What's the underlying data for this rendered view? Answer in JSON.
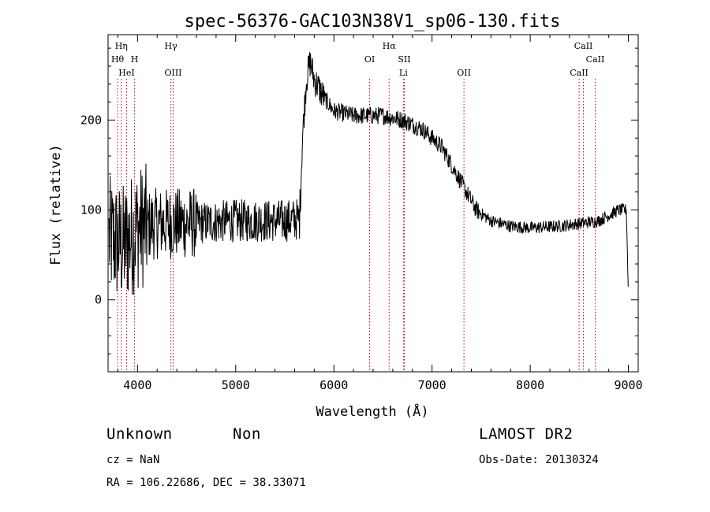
{
  "chart_data": {
    "type": "line",
    "title": "spec-56376-GAC103N38V1_sp06-130.fits",
    "xlabel": "Wavelength (Å)",
    "ylabel": "Flux (relative)",
    "xlim": [
      3700,
      9100
    ],
    "ylim": [
      -80,
      295
    ],
    "x_ticks": [
      4000,
      5000,
      6000,
      7000,
      8000,
      9000
    ],
    "y_ticks": [
      0,
      100,
      200
    ],
    "grid": false,
    "line_color": "#000000",
    "marker_color": "#cc0000",
    "lines": [
      {
        "name": "Hη",
        "wavelength": 3835,
        "row": 0
      },
      {
        "name": "Hθ",
        "wavelength": 3797,
        "row": 1
      },
      {
        "name": "H",
        "wavelength": 3970,
        "row": 1
      },
      {
        "name": "HeI",
        "wavelength": 3889,
        "row": 2
      },
      {
        "name": "Hγ",
        "wavelength": 4340,
        "row": 0
      },
      {
        "name": "OIII",
        "wavelength": 4363,
        "row": 2
      },
      {
        "name": "OI",
        "wavelength": 6364,
        "row": 1
      },
      {
        "name": "Hα",
        "wavelength": 6563,
        "row": 0
      },
      {
        "name": "SII",
        "wavelength": 6717,
        "row": 1
      },
      {
        "name": "Li",
        "wavelength": 6708,
        "row": 2
      },
      {
        "name": "OII",
        "wavelength": 7325,
        "row": 2
      },
      {
        "name": "CaII",
        "wavelength": 8542,
        "row": 0
      },
      {
        "name": "CaII",
        "wavelength": 8662,
        "row": 1
      },
      {
        "name": "CaII",
        "wavelength": 8498,
        "row": 2
      }
    ],
    "spectrum_anchors": [
      [
        3700,
        70
      ],
      [
        3850,
        60
      ],
      [
        4000,
        80
      ],
      [
        4200,
        85
      ],
      [
        4500,
        85
      ],
      [
        5000,
        88
      ],
      [
        5500,
        88
      ],
      [
        5650,
        90
      ],
      [
        5680,
        180
      ],
      [
        5720,
        245
      ],
      [
        5760,
        265
      ],
      [
        5800,
        245
      ],
      [
        5900,
        225
      ],
      [
        6000,
        210
      ],
      [
        6200,
        205
      ],
      [
        6500,
        205
      ],
      [
        6700,
        200
      ],
      [
        6900,
        190
      ],
      [
        7100,
        170
      ],
      [
        7300,
        130
      ],
      [
        7450,
        100
      ],
      [
        7600,
        88
      ],
      [
        7800,
        82
      ],
      [
        8000,
        80
      ],
      [
        8300,
        82
      ],
      [
        8500,
        85
      ],
      [
        8700,
        88
      ],
      [
        8900,
        100
      ],
      [
        8980,
        100
      ],
      [
        9000,
        5
      ]
    ]
  },
  "info": {
    "class": "Unknown",
    "subclass": "Non",
    "cz": "cz = NaN",
    "coords": "RA = 106.22686, DEC =  38.33071",
    "survey": "LAMOST DR2",
    "obs_date": "Obs-Date: 20130324"
  }
}
